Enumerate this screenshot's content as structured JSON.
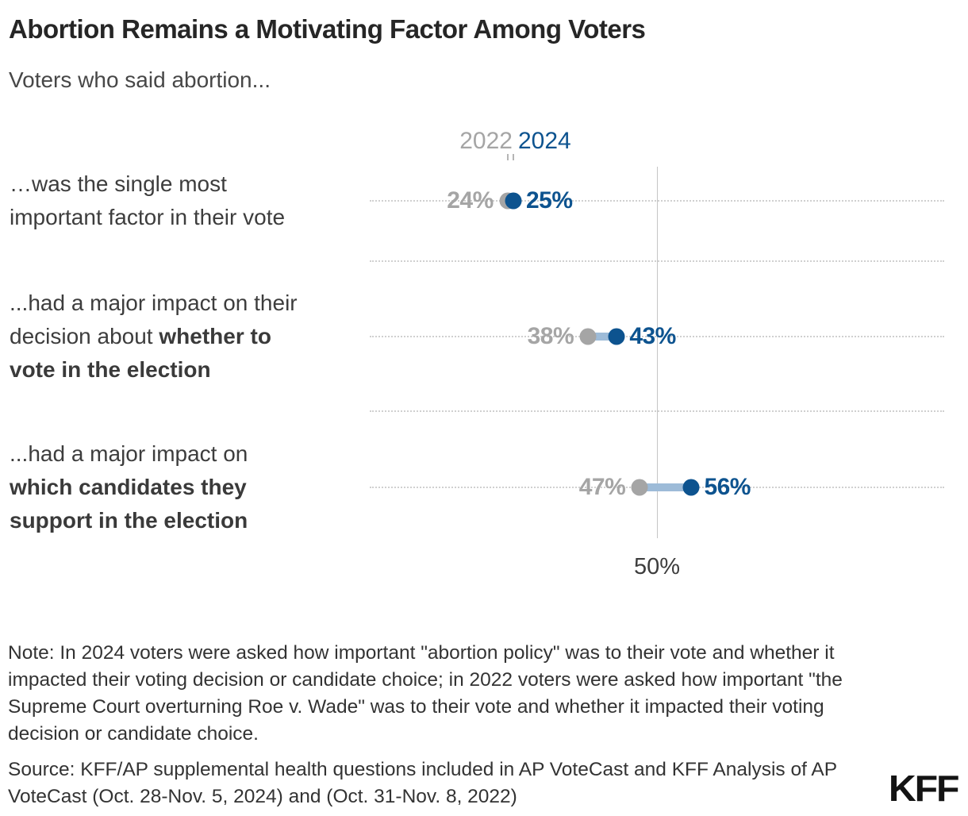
{
  "colors": {
    "blue_2024": "#0d538f",
    "gray_2022": "#a5a5a5",
    "connector": "#9dbbd8",
    "gridline": "#c9c9c9",
    "axis_line": "#c5c5c5",
    "title_text": "#262626",
    "body_text": "#3d3d3d",
    "note_text": "#333333",
    "logo_text": "#141414"
  },
  "header": {
    "title": "Abortion Remains a Motivating Factor Among Voters",
    "subtitle": "Voters who said abortion..."
  },
  "legend": {
    "label_2022": "2022",
    "label_2024": "2024"
  },
  "rows": [
    {
      "lines": [
        {
          "plain": "…was the single most",
          "bold": ""
        },
        {
          "plain": "important factor in their vote",
          "bold": ""
        }
      ],
      "value_2022_label": "24%",
      "value_2024_label": "25%"
    },
    {
      "lines": [
        {
          "plain": "...had a major impact on their",
          "bold": ""
        },
        {
          "plain": "decision about ",
          "bold": "whether to"
        },
        {
          "plain": "",
          "bold": "vote in the election"
        }
      ],
      "value_2022_label": "38%",
      "value_2024_label": "43%"
    },
    {
      "lines": [
        {
          "plain": "...had a major impact on",
          "bold": ""
        },
        {
          "plain": "",
          "bold": "which candidates they"
        },
        {
          "plain": "",
          "bold": "support in the election"
        }
      ],
      "value_2022_label": "47%",
      "value_2024_label": "56%"
    }
  ],
  "axis": {
    "reference_label": "50%"
  },
  "note": "Note: In 2024 voters were asked how important \"abortion policy\" was to their vote and whether it impacted their voting decision or candidate choice; in 2022 voters were asked how important \"the Supreme Court overturning Roe v. Wade\" was to their vote and whether it impacted their voting decision or candidate choice.",
  "source": "Source: KFF/AP supplemental health questions included in AP VoteCast and KFF Analysis of AP VoteCast (Oct. 28-Nov. 5, 2024) and (Oct. 31-Nov. 8, 2022)",
  "logo": "KFF",
  "chart_data": {
    "type": "scatter",
    "variant": "dumbbell",
    "title": "Abortion Remains a Motivating Factor Among Voters",
    "subtitle": "Voters who said abortion...",
    "categories": [
      "…was the single most important factor in their vote",
      "...had a major impact on their decision about whether to vote in the election",
      "...had a major impact on which candidates they support in the election"
    ],
    "series": [
      {
        "name": "2022",
        "values": [
          24,
          38,
          47
        ]
      },
      {
        "name": "2024",
        "values": [
          25,
          43,
          56
        ]
      }
    ],
    "value_suffix": "%",
    "xlim": [
      0,
      100
    ],
    "reference_line_x": 50,
    "reference_line_label": "50%",
    "legend_position": "top",
    "gridlines": "dotted horizontal guides at each row and between categories",
    "grid": true
  }
}
